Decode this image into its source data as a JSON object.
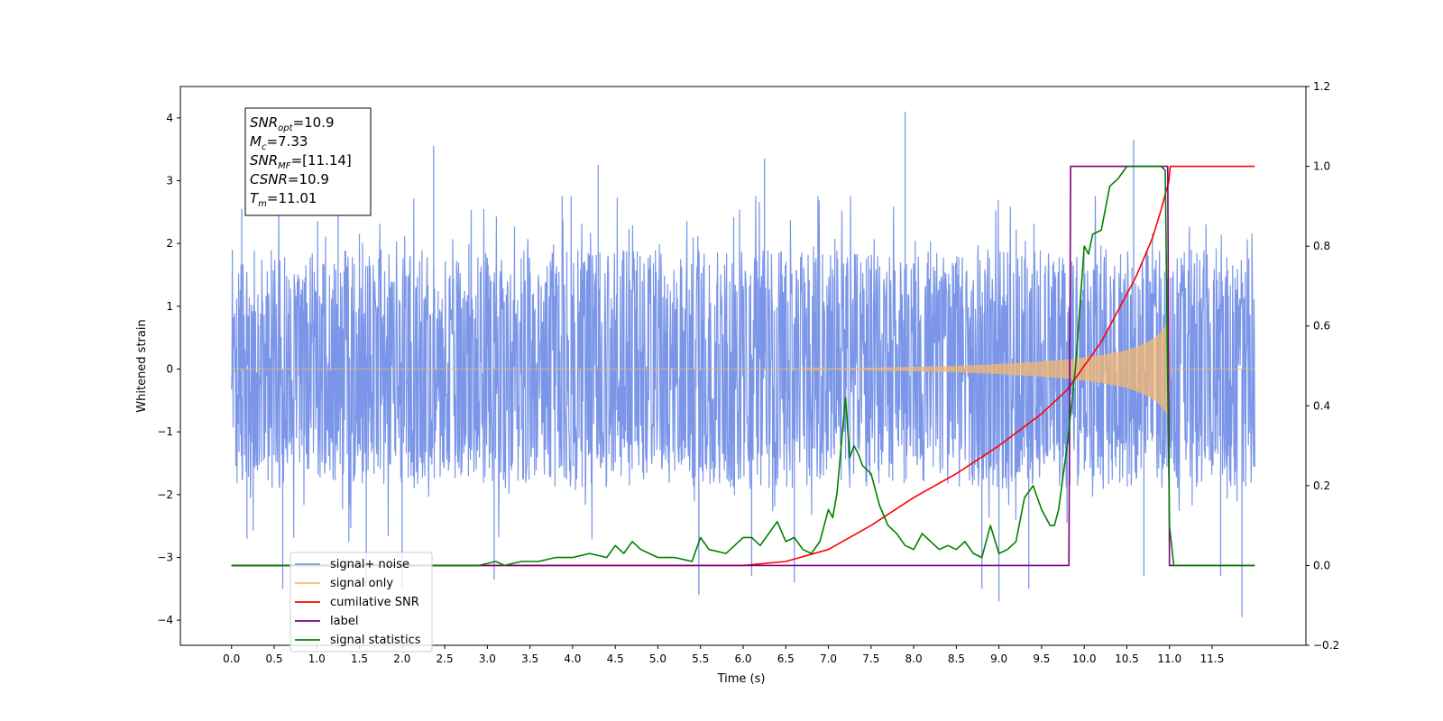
{
  "chart_data": {
    "type": "line",
    "xlabel": "Time (s)",
    "ylabel": "Whitened strain",
    "xlim": [
      -0.6,
      12.6
    ],
    "ylim": [
      -4.4,
      4.5
    ],
    "y2lim": [
      -0.2,
      1.2
    ],
    "xticks": [
      0.0,
      0.5,
      1.0,
      1.5,
      2.0,
      2.5,
      3.0,
      3.5,
      4.0,
      4.5,
      5.0,
      5.5,
      6.0,
      6.5,
      7.0,
      7.5,
      8.0,
      8.5,
      9.0,
      9.5,
      10.0,
      10.5,
      11.0,
      11.5
    ],
    "xtick_labels": [
      "0.0",
      "0.5",
      "1.0",
      "1.5",
      "2.0",
      "2.5",
      "3.0",
      "3.5",
      "4.0",
      "4.5",
      "5.0",
      "5.5",
      "6.0",
      "6.5",
      "7.0",
      "7.5",
      "8.0",
      "8.5",
      "9.0",
      "9.5",
      "10.0",
      "10.5",
      "11.0",
      "11.5"
    ],
    "yticks": [
      -4,
      -3,
      -2,
      -1,
      0,
      1,
      2,
      3,
      4
    ],
    "ytick_labels": [
      "−4",
      "−3",
      "−2",
      "−1",
      "0",
      "1",
      "2",
      "3",
      "4"
    ],
    "y2ticks": [
      -0.2,
      0.0,
      0.2,
      0.4,
      0.6,
      0.8,
      1.0,
      1.2
    ],
    "y2tick_labels": [
      "−0.2",
      "0.0",
      "0.2",
      "0.4",
      "0.6",
      "0.8",
      "1.0",
      "1.2"
    ],
    "legend_placement": "lower-left",
    "grid": false,
    "annotation_lines": [
      {
        "sym": "SNR",
        "sub": "opt",
        "val": "=10.9"
      },
      {
        "sym": "M",
        "sub": "c",
        "val": "=7.33"
      },
      {
        "sym": "SNR",
        "sub": "MF",
        "val": "=[11.14]"
      },
      {
        "sym": "CSNR",
        "sub": "",
        "val": "=10.9"
      },
      {
        "sym": "T",
        "sub": "m",
        "val": "=11.01"
      }
    ],
    "series": [
      {
        "name": "signal+ noise",
        "color": "#7b96e8",
        "axis": "left",
        "kind": "noise",
        "x_range": [
          0.0,
          12.0
        ],
        "typical_amplitude": 1.9,
        "outliers": [
          {
            "x": 0.12,
            "y": 2.55
          },
          {
            "x": 0.18,
            "y": -2.7
          },
          {
            "x": 0.6,
            "y": -3.5
          },
          {
            "x": 1.58,
            "y": -3.45
          },
          {
            "x": 2.0,
            "y": -3.5
          },
          {
            "x": 2.37,
            "y": 3.55
          },
          {
            "x": 3.08,
            "y": -3.35
          },
          {
            "x": 5.48,
            "y": -3.6
          },
          {
            "x": 6.1,
            "y": -3.3
          },
          {
            "x": 6.6,
            "y": -3.4
          },
          {
            "x": 7.9,
            "y": 4.1
          },
          {
            "x": 8.8,
            "y": -3.5
          },
          {
            "x": 9.0,
            "y": -3.7
          },
          {
            "x": 9.35,
            "y": -3.5
          },
          {
            "x": 10.58,
            "y": 3.65
          },
          {
            "x": 10.7,
            "y": -3.3
          },
          {
            "x": 11.6,
            "y": -3.3
          },
          {
            "x": 11.85,
            "y": -3.95
          },
          {
            "x": 1.25,
            "y": 3.2
          },
          {
            "x": 4.3,
            "y": 3.25
          },
          {
            "x": 6.25,
            "y": 3.35
          }
        ]
      },
      {
        "name": "signal only",
        "color": "#f4b870",
        "axis": "left",
        "kind": "chirp",
        "envelope": {
          "x": [
            0.0,
            6.5,
            7.5,
            8.5,
            9.0,
            9.5,
            9.85,
            10.2,
            10.5,
            10.7,
            10.85,
            10.92,
            10.96,
            10.99,
            11.0,
            12.0
          ],
          "y": [
            0.0,
            0.0,
            0.02,
            0.05,
            0.08,
            0.12,
            0.16,
            0.22,
            0.3,
            0.4,
            0.52,
            0.62,
            0.7,
            0.8,
            0.0,
            0.0
          ]
        }
      },
      {
        "name": "cumilative SNR",
        "color": "#ff0000",
        "axis": "right",
        "x": [
          0.0,
          6.0,
          6.5,
          7.0,
          7.5,
          8.0,
          8.5,
          9.0,
          9.5,
          9.8,
          10.0,
          10.2,
          10.4,
          10.6,
          10.8,
          10.9,
          10.95,
          10.99,
          11.0,
          11.01,
          12.0
        ],
        "y": [
          0.0,
          0.0,
          0.01,
          0.04,
          0.1,
          0.17,
          0.23,
          0.3,
          0.38,
          0.44,
          0.5,
          0.56,
          0.64,
          0.72,
          0.82,
          0.89,
          0.93,
          0.96,
          0.98,
          1.0,
          1.0
        ]
      },
      {
        "name": "label",
        "color": "#800080",
        "axis": "right",
        "x": [
          0.0,
          9.82,
          9.84,
          10.98,
          11.0,
          12.0
        ],
        "y": [
          0.0,
          0.0,
          1.0,
          1.0,
          0.0,
          0.0
        ]
      },
      {
        "name": "signal statistics",
        "color": "#008000",
        "axis": "right",
        "x": [
          0.0,
          2.9,
          3.1,
          3.2,
          3.4,
          3.6,
          3.8,
          4.0,
          4.2,
          4.4,
          4.5,
          4.6,
          4.7,
          4.8,
          4.9,
          5.0,
          5.2,
          5.4,
          5.5,
          5.6,
          5.8,
          6.0,
          6.1,
          6.2,
          6.3,
          6.4,
          6.5,
          6.6,
          6.7,
          6.8,
          6.9,
          7.0,
          7.05,
          7.1,
          7.2,
          7.25,
          7.3,
          7.35,
          7.4,
          7.5,
          7.6,
          7.7,
          7.8,
          7.9,
          8.0,
          8.1,
          8.2,
          8.3,
          8.4,
          8.5,
          8.6,
          8.7,
          8.8,
          8.9,
          9.0,
          9.1,
          9.2,
          9.3,
          9.4,
          9.5,
          9.6,
          9.65,
          9.7,
          9.75,
          9.8,
          9.85,
          9.9,
          10.0,
          10.05,
          10.1,
          10.2,
          10.3,
          10.4,
          10.5,
          10.6,
          10.7,
          10.8,
          10.9,
          10.95,
          11.0,
          11.05,
          11.1,
          12.0
        ],
        "y": [
          0.0,
          0.0,
          0.01,
          0.0,
          0.01,
          0.01,
          0.02,
          0.02,
          0.03,
          0.02,
          0.05,
          0.03,
          0.06,
          0.04,
          0.03,
          0.02,
          0.02,
          0.01,
          0.07,
          0.04,
          0.03,
          0.07,
          0.07,
          0.05,
          0.08,
          0.11,
          0.06,
          0.07,
          0.04,
          0.03,
          0.06,
          0.14,
          0.12,
          0.18,
          0.42,
          0.27,
          0.3,
          0.28,
          0.25,
          0.23,
          0.15,
          0.1,
          0.08,
          0.05,
          0.04,
          0.08,
          0.06,
          0.04,
          0.05,
          0.04,
          0.06,
          0.03,
          0.02,
          0.1,
          0.03,
          0.04,
          0.06,
          0.17,
          0.2,
          0.14,
          0.1,
          0.1,
          0.14,
          0.22,
          0.3,
          0.4,
          0.5,
          0.8,
          0.78,
          0.83,
          0.84,
          0.95,
          0.97,
          1.0,
          1.0,
          1.0,
          1.0,
          1.0,
          0.99,
          0.1,
          0.0,
          0.0,
          0.0
        ]
      }
    ],
    "legend": [
      {
        "name": "signal+ noise",
        "color": "#7b96e8"
      },
      {
        "name": "signal only",
        "color": "#f4b870"
      },
      {
        "name": "cumilative SNR",
        "color": "#ff0000"
      },
      {
        "name": "label",
        "color": "#800080"
      },
      {
        "name": "signal statistics",
        "color": "#008000"
      }
    ]
  }
}
